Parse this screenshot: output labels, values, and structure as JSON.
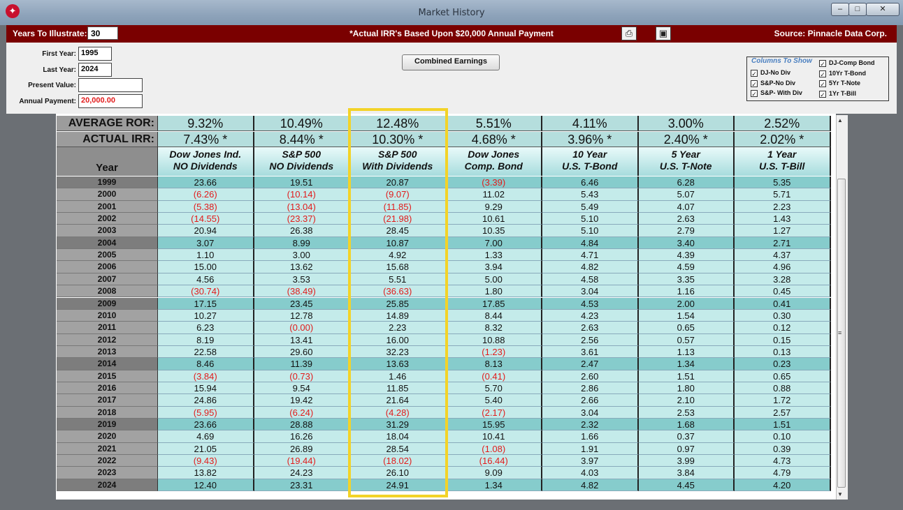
{
  "window": {
    "title": "Market History",
    "icons": [
      "app-logo-icon",
      "minimize-icon",
      "maximize-icon",
      "close-icon"
    ]
  },
  "banner": {
    "years_label": "Years To Illustrate:",
    "years_value": "30",
    "note": "*Actual IRR's Based Upon $20,000 Annual Payment",
    "source": "Source: Pinnacle Data Corp.",
    "icons": [
      "print-icon",
      "preview-icon"
    ]
  },
  "panel": {
    "first_year_label": "First Year:",
    "first_year": "1995",
    "last_year_label": "Last Year:",
    "last_year": "2024",
    "present_value_label": "Present Value:",
    "present_value": "",
    "annual_payment_label": "Annual Payment:",
    "annual_payment": "20,000.00",
    "combined_button": "Combined Earnings",
    "columns_title": "Columns To Show",
    "columns_left": [
      {
        "label": "DJ-No Div",
        "checked": true
      },
      {
        "label": "S&P-No Div",
        "checked": true
      },
      {
        "label": "S&P- With Div",
        "checked": true
      }
    ],
    "columns_right": [
      {
        "label": "DJ-Comp Bond",
        "checked": true
      },
      {
        "label": "10Yr T-Bond",
        "checked": true
      },
      {
        "label": "5Yr  T-Note",
        "checked": true
      },
      {
        "label": "1Yr  T-Bill",
        "checked": true
      }
    ]
  },
  "table": {
    "avg_label": "AVERAGE ROR:",
    "irr_label": "ACTUAL IRR:",
    "year_header": "Year",
    "columns": [
      {
        "h1": "Dow Jones Ind.",
        "h2": "NO Dividends",
        "avg": "9.32%",
        "irr": "7.43% *"
      },
      {
        "h1": "S&P 500",
        "h2": "NO Dividends",
        "avg": "10.49%",
        "irr": "8.44% *"
      },
      {
        "h1": "S&P 500",
        "h2": "With Dividends",
        "avg": "12.48%",
        "irr": "10.30% *"
      },
      {
        "h1": "Dow Jones",
        "h2": "Comp. Bond",
        "avg": "5.51%",
        "irr": "4.68% *"
      },
      {
        "h1": "10 Year",
        "h2": "U.S. T-Bond",
        "avg": "4.11%",
        "irr": "3.96% *"
      },
      {
        "h1": "5 Year",
        "h2": "U.S. T-Note",
        "avg": "3.00%",
        "irr": "2.40% *"
      },
      {
        "h1": "1 Year",
        "h2": "U.S. T-Bill",
        "avg": "2.52%",
        "irr": "2.02% *"
      }
    ],
    "rows": [
      {
        "year": "1999",
        "values": [
          "23.66",
          "19.51",
          "20.87",
          "(3.39)",
          "6.46",
          "6.28",
          "5.35"
        ]
      },
      {
        "year": "2000",
        "values": [
          "(6.26)",
          "(10.14)",
          "(9.07)",
          "11.02",
          "5.43",
          "5.07",
          "5.71"
        ]
      },
      {
        "year": "2001",
        "values": [
          "(5.38)",
          "(13.04)",
          "(11.85)",
          "9.29",
          "5.49",
          "4.07",
          "2.23"
        ]
      },
      {
        "year": "2002",
        "values": [
          "(14.55)",
          "(23.37)",
          "(21.98)",
          "10.61",
          "5.10",
          "2.63",
          "1.43"
        ]
      },
      {
        "year": "2003",
        "values": [
          "20.94",
          "26.38",
          "28.45",
          "10.35",
          "5.10",
          "2.79",
          "1.27"
        ]
      },
      {
        "year": "2004",
        "values": [
          "3.07",
          "8.99",
          "10.87",
          "7.00",
          "4.84",
          "3.40",
          "2.71"
        ]
      },
      {
        "year": "2005",
        "values": [
          "1.10",
          "3.00",
          "4.92",
          "1.33",
          "4.71",
          "4.39",
          "4.37"
        ]
      },
      {
        "year": "2006",
        "values": [
          "15.00",
          "13.62",
          "15.68",
          "3.94",
          "4.82",
          "4.59",
          "4.96"
        ]
      },
      {
        "year": "2007",
        "values": [
          "4.56",
          "3.53",
          "5.51",
          "5.00",
          "4.58",
          "3.35",
          "3.28"
        ]
      },
      {
        "year": "2008",
        "values": [
          "(30.74)",
          "(38.49)",
          "(36.63)",
          "1.80",
          "3.04",
          "1.16",
          "0.45"
        ]
      },
      {
        "year": "2009",
        "values": [
          "17.15",
          "23.45",
          "25.85",
          "17.85",
          "4.53",
          "2.00",
          "0.41"
        ]
      },
      {
        "year": "2010",
        "values": [
          "10.27",
          "12.78",
          "14.89",
          "8.44",
          "4.23",
          "1.54",
          "0.30"
        ]
      },
      {
        "year": "2011",
        "values": [
          "6.23",
          "(0.00)",
          "2.23",
          "8.32",
          "2.63",
          "0.65",
          "0.12"
        ]
      },
      {
        "year": "2012",
        "values": [
          "8.19",
          "13.41",
          "16.00",
          "10.88",
          "2.56",
          "0.57",
          "0.15"
        ]
      },
      {
        "year": "2013",
        "values": [
          "22.58",
          "29.60",
          "32.23",
          "(1.23)",
          "3.61",
          "1.13",
          "0.13"
        ]
      },
      {
        "year": "2014",
        "values": [
          "8.46",
          "11.39",
          "13.63",
          "8.13",
          "2.47",
          "1.34",
          "0.23"
        ]
      },
      {
        "year": "2015",
        "values": [
          "(3.84)",
          "(0.73)",
          "1.46",
          "(0.41)",
          "2.60",
          "1.51",
          "0.65"
        ]
      },
      {
        "year": "2016",
        "values": [
          "15.94",
          "9.54",
          "11.85",
          "5.70",
          "2.86",
          "1.80",
          "0.88"
        ]
      },
      {
        "year": "2017",
        "values": [
          "24.86",
          "19.42",
          "21.64",
          "5.40",
          "2.66",
          "2.10",
          "1.72"
        ]
      },
      {
        "year": "2018",
        "values": [
          "(5.95)",
          "(6.24)",
          "(4.28)",
          "(2.17)",
          "3.04",
          "2.53",
          "2.57"
        ]
      },
      {
        "year": "2019",
        "values": [
          "23.66",
          "28.88",
          "31.29",
          "15.95",
          "2.32",
          "1.68",
          "1.51"
        ]
      },
      {
        "year": "2020",
        "values": [
          "4.69",
          "16.26",
          "18.04",
          "10.41",
          "1.66",
          "0.37",
          "0.10"
        ]
      },
      {
        "year": "2021",
        "values": [
          "21.05",
          "26.89",
          "28.54",
          "(1.08)",
          "1.91",
          "0.97",
          "0.39"
        ]
      },
      {
        "year": "2022",
        "values": [
          "(9.43)",
          "(19.44)",
          "(18.02)",
          "(16.44)",
          "3.97",
          "3.99",
          "4.73"
        ]
      },
      {
        "year": "2023",
        "values": [
          "13.82",
          "24.23",
          "26.10",
          "9.09",
          "4.03",
          "3.84",
          "4.79"
        ]
      },
      {
        "year": "2024",
        "values": [
          "12.40",
          "23.31",
          "24.91",
          "1.34",
          "4.82",
          "4.45",
          "4.20"
        ]
      }
    ]
  }
}
